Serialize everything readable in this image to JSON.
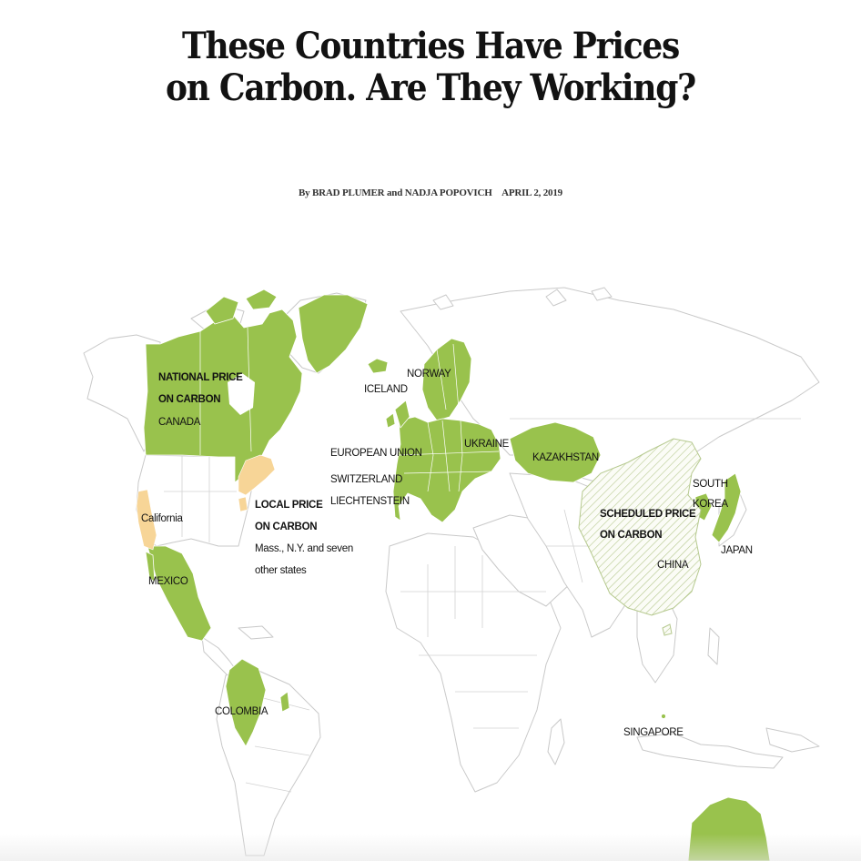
{
  "article": {
    "headline_line1": "These Countries Have Prices",
    "headline_line2": "on Carbon. Are They Working?",
    "byline_prefix": "By",
    "author1": "BRAD PLUMER",
    "byline_and": "and",
    "author2": "NADJA POPOVICH",
    "date": "APRIL 2, 2019"
  },
  "map": {
    "colors": {
      "national_price": "#99c24d",
      "local_price": "#f7d597",
      "scheduled_price_hatch": "#b6c98f",
      "land": "#ffffff",
      "borders": "#c9c9c9"
    },
    "legend": {
      "national_title_line1": "NATIONAL PRICE",
      "national_title_line2": "ON CARBON",
      "national_example": "CANADA",
      "local_title_line1": "LOCAL PRICE",
      "local_title_line2": "ON CARBON",
      "local_note_line1": "Mass., N.Y. and seven",
      "local_note_line2": "other states",
      "scheduled_title_line1": "SCHEDULED PRICE",
      "scheduled_title_line2": "ON CARBON",
      "scheduled_example": "CHINA"
    },
    "labels": {
      "california": "California",
      "mexico": "MEXICO",
      "colombia": "COLOMBIA",
      "iceland": "ICELAND",
      "norway": "NORWAY",
      "ukraine": "UKRAINE",
      "eu": "EUROPEAN UNION",
      "switzerland": "SWITZERLAND",
      "liechtenstein": "LIECHTENSTEIN",
      "kazakhstan": "KAZAKHSTAN",
      "south_korea_line1": "SOUTH",
      "south_korea_line2": "KOREA",
      "japan": "JAPAN",
      "singapore": "SINGAPORE"
    }
  }
}
